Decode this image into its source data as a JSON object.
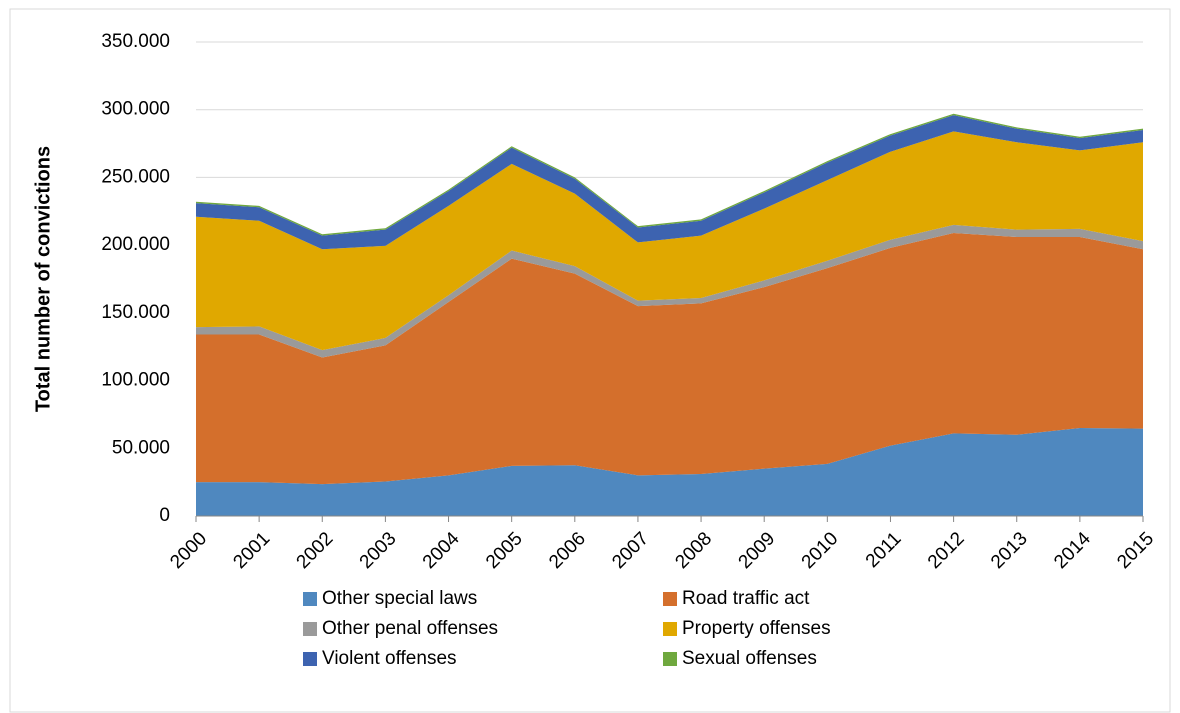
{
  "chart_data": {
    "type": "stacked_area",
    "y_label": "Total number of convictions",
    "categories": [
      "2000",
      "2001",
      "2002",
      "2003",
      "2004",
      "2005",
      "2006",
      "2007",
      "2008",
      "2009",
      "2010",
      "2011",
      "2012",
      "2013",
      "2014",
      "2015"
    ],
    "series": [
      {
        "name": "Other special laws",
        "color": "#4f88bf",
        "values": [
          25000,
          25000,
          23500,
          25500,
          30000,
          37000,
          37500,
          30000,
          31000,
          35000,
          38500,
          52000,
          61000,
          60000,
          65000,
          64500
        ]
      },
      {
        "name": "Road traffic act",
        "color": "#d46f2c",
        "values": [
          109000,
          109000,
          93500,
          100500,
          128000,
          153000,
          141500,
          125000,
          126000,
          134000,
          144500,
          146000,
          148000,
          146000,
          141000,
          132500
        ]
      },
      {
        "name": "Other penal offenses",
        "color": "#9a9a9a",
        "values": [
          5500,
          6000,
          5500,
          5500,
          5000,
          6000,
          5500,
          4000,
          4000,
          5000,
          5500,
          6000,
          6000,
          5500,
          6000,
          6000
        ]
      },
      {
        "name": "Property offenses",
        "color": "#e0a800",
        "values": [
          81500,
          78000,
          74500,
          68000,
          66000,
          64000,
          53500,
          43000,
          46000,
          53000,
          59500,
          65000,
          69000,
          64500,
          58000,
          73000
        ]
      },
      {
        "name": "Violent offenses",
        "color": "#3d63b0",
        "values": [
          10000,
          10000,
          10000,
          12000,
          11000,
          12000,
          11000,
          11000,
          11000,
          12000,
          13000,
          12000,
          12000,
          10000,
          9000,
          9000
        ]
      },
      {
        "name": "Sexual offenses",
        "color": "#6fa83e",
        "values": [
          1000,
          1000,
          1000,
          1000,
          1000,
          1000,
          1000,
          1000,
          1000,
          1000,
          1000,
          1000,
          1000,
          1000,
          1000,
          1000
        ]
      }
    ],
    "ylim": [
      0,
      350000
    ],
    "yticks": [
      0,
      {
        "value": 50000,
        "label": "50.000"
      },
      {
        "value": 100000,
        "label": "100.000"
      },
      {
        "value": 150000,
        "label": "150.000"
      },
      {
        "value": 200000,
        "label": "200.000"
      },
      {
        "value": 250000,
        "label": "250.000"
      },
      {
        "value": 300000,
        "label": "300.000"
      },
      {
        "value": 350000,
        "label": "350.000"
      }
    ],
    "grid": true
  }
}
